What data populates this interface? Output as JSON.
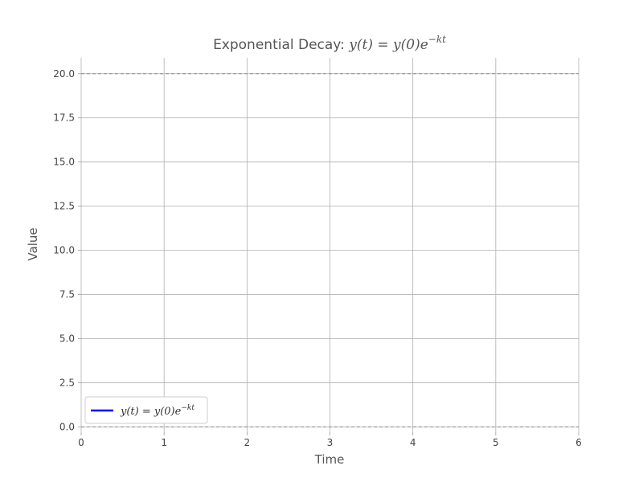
{
  "chart_data": {
    "type": "line",
    "title": {
      "prefix": "Exponential Decay: ",
      "math_base": "y(t) = y(0)e",
      "math_exp": "−kt"
    },
    "xlabel": "Time",
    "ylabel": "Value",
    "xlim": [
      0,
      6
    ],
    "ylim": [
      -0.3,
      20.9
    ],
    "x_ticks": [
      0,
      1,
      2,
      3,
      4,
      5,
      6
    ],
    "x_tick_labels": [
      "0",
      "1",
      "2",
      "3",
      "4",
      "5",
      "6"
    ],
    "y_ticks": [
      0,
      2.5,
      5,
      7.5,
      10,
      12.5,
      15,
      17.5,
      20
    ],
    "y_tick_labels": [
      "0.0",
      "2.5",
      "5.0",
      "7.5",
      "10.0",
      "12.5",
      "15.0",
      "17.5",
      "20.0"
    ],
    "grid": true,
    "reference_lines_y": [
      0,
      20
    ],
    "series": [
      {
        "name_base": "y(t) = y(0)e",
        "name_exp": "−kt",
        "color": "#0000ff",
        "x": [],
        "y": []
      }
    ],
    "legend_position": "lower-left"
  }
}
